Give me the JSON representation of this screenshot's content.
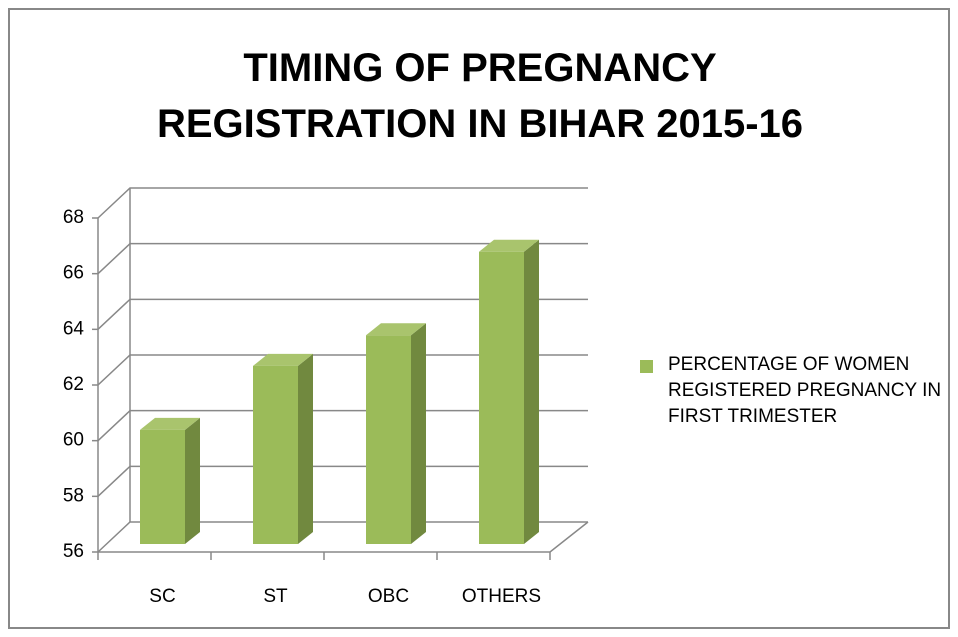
{
  "chart_data": {
    "type": "bar3d",
    "title": "TIMING OF PREGNANCY REGISTRATION IN BIHAR 2015-16",
    "categories": [
      "SC",
      "ST",
      "OBC",
      "OTHERS"
    ],
    "series": [
      {
        "name": "PERCENTAGE OF WOMEN REGISTERED PREGNANCY IN FIRST TRIMESTER",
        "color": "#9bbb59",
        "values": [
          60.1,
          62.4,
          63.5,
          66.5
        ]
      }
    ],
    "ylim": [
      56,
      68
    ],
    "yticks": [
      56,
      58,
      60,
      62,
      64,
      66,
      68
    ],
    "grid": true,
    "legend": "right"
  }
}
